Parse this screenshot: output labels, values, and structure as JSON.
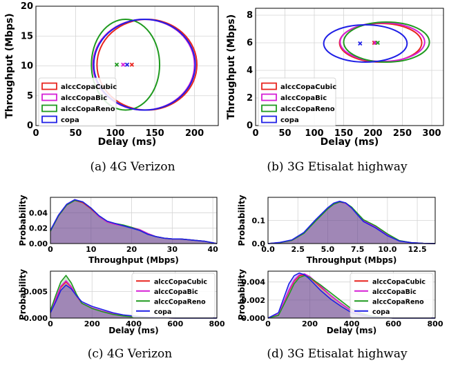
{
  "captions": {
    "a": "(a) 4G Verizon",
    "b": "(b) 3G Etisalat highway",
    "c": "(c) 4G Verizon",
    "d": "(d) 3G Etisalat highway"
  },
  "series_styles": [
    {
      "name": "alccCopaCubic",
      "color": "#e8241f"
    },
    {
      "name": "alccCopaBic",
      "color": "#d61fd6"
    },
    {
      "name": "alccCopaReno",
      "color": "#1f9a1f"
    },
    {
      "name": "copa",
      "color": "#1f1fe6"
    }
  ],
  "chart_data": [
    {
      "id": "a",
      "type": "scatter",
      "xlabel": "Delay (ms)",
      "ylabel": "Throughput (Mbps)",
      "xlim": [
        0,
        230
      ],
      "ylim": [
        0,
        20
      ],
      "xticks": [
        0,
        50,
        100,
        150,
        200
      ],
      "yticks": [
        0,
        5,
        10,
        15,
        20
      ],
      "grid": true,
      "legend": "bottom-left",
      "series": [
        {
          "name": "alccCopaCubic",
          "mean": [
            121,
            10.2
          ],
          "ellipse_center": [
            140,
            10.2
          ],
          "ellipse_radii": [
            63,
            7.6
          ]
        },
        {
          "name": "alccCopaBic",
          "mean": [
            110,
            10.2
          ],
          "ellipse_center": [
            136,
            10.2
          ],
          "ellipse_radii": [
            64,
            7.6
          ]
        },
        {
          "name": "alccCopaReno",
          "mean": [
            102,
            10.2
          ],
          "ellipse_center": [
            113,
            10.2
          ],
          "ellipse_radii": [
            43,
            7.6
          ]
        },
        {
          "name": "copa",
          "mean": [
            115,
            10.2
          ],
          "ellipse_center": [
            137,
            10.2
          ],
          "ellipse_radii": [
            64,
            7.6
          ]
        }
      ]
    },
    {
      "id": "b",
      "type": "scatter",
      "xlabel": "Delay (ms)",
      "ylabel": "Throughput (Mbps)",
      "xlim": [
        0,
        320
      ],
      "ylim": [
        0,
        8.5
      ],
      "xticks": [
        0,
        50,
        100,
        150,
        200,
        250,
        300
      ],
      "yticks": [
        0,
        2,
        4,
        6,
        8
      ],
      "grid": true,
      "legend": "bottom-left",
      "series": [
        {
          "name": "alccCopaCubic",
          "mean": [
            202,
            6.0
          ],
          "ellipse_center": [
            213,
            6.0
          ],
          "ellipse_radii": [
            70,
            1.4
          ]
        },
        {
          "name": "alccCopaBic",
          "mean": [
            204,
            6.0
          ],
          "ellipse_center": [
            216,
            6.05
          ],
          "ellipse_radii": [
            72,
            1.4
          ]
        },
        {
          "name": "alccCopaReno",
          "mean": [
            208,
            6.0
          ],
          "ellipse_center": [
            223,
            6.05
          ],
          "ellipse_radii": [
            73,
            1.45
          ]
        },
        {
          "name": "copa",
          "mean": [
            178,
            5.95
          ],
          "ellipse_center": [
            187,
            5.95
          ],
          "ellipse_radii": [
            71,
            1.35
          ]
        }
      ]
    },
    {
      "id": "c_top",
      "type": "area",
      "xlabel": "Throughput (Mbps)",
      "ylabel": "Probability",
      "xlim": [
        0,
        41
      ],
      "ylim": [
        0,
        0.06
      ],
      "xticks": [
        0,
        10,
        20,
        30,
        40
      ],
      "yticks": [
        0.0,
        0.02,
        0.04
      ],
      "yticklabels": [
        "0.00",
        "0.02",
        "0.04"
      ],
      "grid": true,
      "x": [
        0,
        2,
        4,
        6,
        8,
        10,
        12,
        14,
        16,
        18,
        20,
        22,
        24,
        26,
        28,
        30,
        32,
        34,
        36,
        38,
        40,
        41
      ],
      "series": [
        {
          "name": "alccCopaCubic",
          "values": [
            0.017,
            0.036,
            0.05,
            0.056,
            0.053,
            0.045,
            0.035,
            0.028,
            0.025,
            0.023,
            0.021,
            0.018,
            0.013,
            0.009,
            0.007,
            0.006,
            0.006,
            0.005,
            0.004,
            0.003,
            0.001,
            0.0
          ]
        },
        {
          "name": "alccCopaBic",
          "values": [
            0.017,
            0.037,
            0.051,
            0.057,
            0.054,
            0.046,
            0.035,
            0.028,
            0.025,
            0.023,
            0.021,
            0.018,
            0.013,
            0.009,
            0.007,
            0.006,
            0.006,
            0.005,
            0.004,
            0.003,
            0.001,
            0.0
          ]
        },
        {
          "name": "alccCopaReno",
          "values": [
            0.016,
            0.036,
            0.05,
            0.056,
            0.054,
            0.046,
            0.036,
            0.029,
            0.026,
            0.024,
            0.021,
            0.017,
            0.012,
            0.009,
            0.007,
            0.006,
            0.006,
            0.005,
            0.004,
            0.003,
            0.001,
            0.0
          ]
        },
        {
          "name": "copa",
          "values": [
            0.017,
            0.037,
            0.051,
            0.057,
            0.054,
            0.046,
            0.036,
            0.029,
            0.026,
            0.023,
            0.02,
            0.017,
            0.012,
            0.009,
            0.007,
            0.006,
            0.006,
            0.005,
            0.004,
            0.003,
            0.001,
            0.0
          ]
        }
      ]
    },
    {
      "id": "c_bottom",
      "type": "area",
      "xlabel": "Delay (ms)",
      "ylabel": "Probability",
      "xlim": [
        0,
        800
      ],
      "ylim": [
        0,
        0.0088
      ],
      "xticks": [
        0,
        200,
        400,
        600,
        800
      ],
      "yticks": [
        0.0,
        0.005
      ],
      "yticklabels": [
        "0.000",
        "0.005"
      ],
      "grid": true,
      "legend": "top-right",
      "x": [
        0,
        25,
        50,
        75,
        100,
        125,
        150,
        200,
        250,
        300,
        350,
        400,
        450,
        500,
        600,
        700,
        800
      ],
      "series": [
        {
          "name": "alccCopaCubic",
          "values": [
            0.0012,
            0.0035,
            0.0058,
            0.0068,
            0.0058,
            0.0042,
            0.0028,
            0.0019,
            0.0013,
            0.0008,
            0.0005,
            0.0003,
            0.0002,
            0.0001,
            0.0,
            0.0,
            0.0
          ]
        },
        {
          "name": "alccCopaBic",
          "values": [
            0.0012,
            0.0036,
            0.006,
            0.007,
            0.0059,
            0.0043,
            0.0028,
            0.0019,
            0.0013,
            0.0008,
            0.0005,
            0.0003,
            0.0002,
            0.0001,
            0.0,
            0.0,
            0.0
          ]
        },
        {
          "name": "alccCopaReno",
          "values": [
            0.0014,
            0.0042,
            0.0068,
            0.008,
            0.0066,
            0.0045,
            0.0028,
            0.0018,
            0.0012,
            0.0007,
            0.0004,
            0.0002,
            0.0001,
            0.0001,
            0.0,
            0.0,
            0.0
          ]
        },
        {
          "name": "copa",
          "values": [
            0.001,
            0.003,
            0.0052,
            0.0062,
            0.0055,
            0.0042,
            0.0031,
            0.0022,
            0.0016,
            0.001,
            0.0006,
            0.0004,
            0.0002,
            0.0001,
            0.0,
            0.0,
            0.0
          ]
        }
      ]
    },
    {
      "id": "d_top",
      "type": "area",
      "xlabel": "Throughput (Mbps)",
      "ylabel": "Probability",
      "xlim": [
        0,
        14
      ],
      "ylim": [
        0,
        0.2
      ],
      "xticks": [
        0.0,
        2.5,
        5.0,
        7.5,
        10.0,
        12.5
      ],
      "yticks": [
        0.0,
        0.1
      ],
      "xticklabels": [
        "0.0",
        "2.5",
        "5.0",
        "7.5",
        "10.0",
        "12.5"
      ],
      "yticklabels": [
        "0.0",
        "0.1"
      ],
      "grid": true,
      "x": [
        0,
        1,
        2,
        3,
        4,
        5,
        5.5,
        6,
        6.5,
        7,
        7.5,
        8,
        9,
        10,
        11,
        12,
        13,
        14
      ],
      "series": [
        {
          "name": "alccCopaCubic",
          "values": [
            0.0,
            0.004,
            0.014,
            0.045,
            0.1,
            0.152,
            0.172,
            0.181,
            0.175,
            0.155,
            0.126,
            0.098,
            0.072,
            0.038,
            0.012,
            0.004,
            0.001,
            0.0
          ]
        },
        {
          "name": "alccCopaBic",
          "values": [
            0.0,
            0.004,
            0.015,
            0.046,
            0.1,
            0.15,
            0.17,
            0.179,
            0.174,
            0.154,
            0.126,
            0.099,
            0.073,
            0.038,
            0.012,
            0.004,
            0.001,
            0.0
          ]
        },
        {
          "name": "alccCopaReno",
          "values": [
            0.0,
            0.004,
            0.014,
            0.044,
            0.098,
            0.15,
            0.17,
            0.18,
            0.176,
            0.158,
            0.13,
            0.103,
            0.077,
            0.042,
            0.013,
            0.004,
            0.001,
            0.0
          ]
        },
        {
          "name": "copa",
          "values": [
            0.0,
            0.005,
            0.016,
            0.048,
            0.104,
            0.155,
            0.175,
            0.183,
            0.176,
            0.154,
            0.124,
            0.095,
            0.068,
            0.034,
            0.011,
            0.004,
            0.001,
            0.0
          ]
        }
      ]
    },
    {
      "id": "d_bottom",
      "type": "area",
      "xlabel": "Delay (ms)",
      "ylabel": "Probability",
      "xlim": [
        0,
        800
      ],
      "ylim": [
        0,
        0.0052
      ],
      "xticks": [
        0,
        200,
        400,
        600,
        800
      ],
      "yticks": [
        0.0,
        0.002,
        0.004
      ],
      "yticklabels": [
        "0.000",
        "0.002",
        "0.004"
      ],
      "grid": true,
      "legend": "top-right",
      "x": [
        0,
        50,
        100,
        125,
        150,
        175,
        200,
        250,
        300,
        350,
        400,
        450,
        500,
        600,
        700,
        800
      ],
      "series": [
        {
          "name": "alccCopaCubic",
          "values": [
            0.0,
            0.0004,
            0.003,
            0.0041,
            0.0047,
            0.0048,
            0.0045,
            0.0035,
            0.0025,
            0.0016,
            0.0008,
            0.0004,
            0.0002,
            0.0,
            0.0,
            0.0
          ]
        },
        {
          "name": "alccCopaBic",
          "values": [
            0.0,
            0.0004,
            0.0031,
            0.0042,
            0.0048,
            0.0049,
            0.0046,
            0.0036,
            0.0025,
            0.0016,
            0.0008,
            0.0004,
            0.0002,
            0.0,
            0.0,
            0.0
          ]
        },
        {
          "name": "alccCopaReno",
          "values": [
            0.0,
            0.0003,
            0.0026,
            0.0038,
            0.0045,
            0.0047,
            0.0045,
            0.0037,
            0.0028,
            0.0019,
            0.001,
            0.0005,
            0.0002,
            0.0,
            0.0,
            0.0
          ]
        },
        {
          "name": "copa",
          "values": [
            0.0,
            0.0006,
            0.0038,
            0.0047,
            0.005,
            0.0048,
            0.0043,
            0.0031,
            0.0021,
            0.0013,
            0.0006,
            0.0003,
            0.0001,
            0.0,
            0.0,
            0.0
          ]
        }
      ]
    }
  ]
}
